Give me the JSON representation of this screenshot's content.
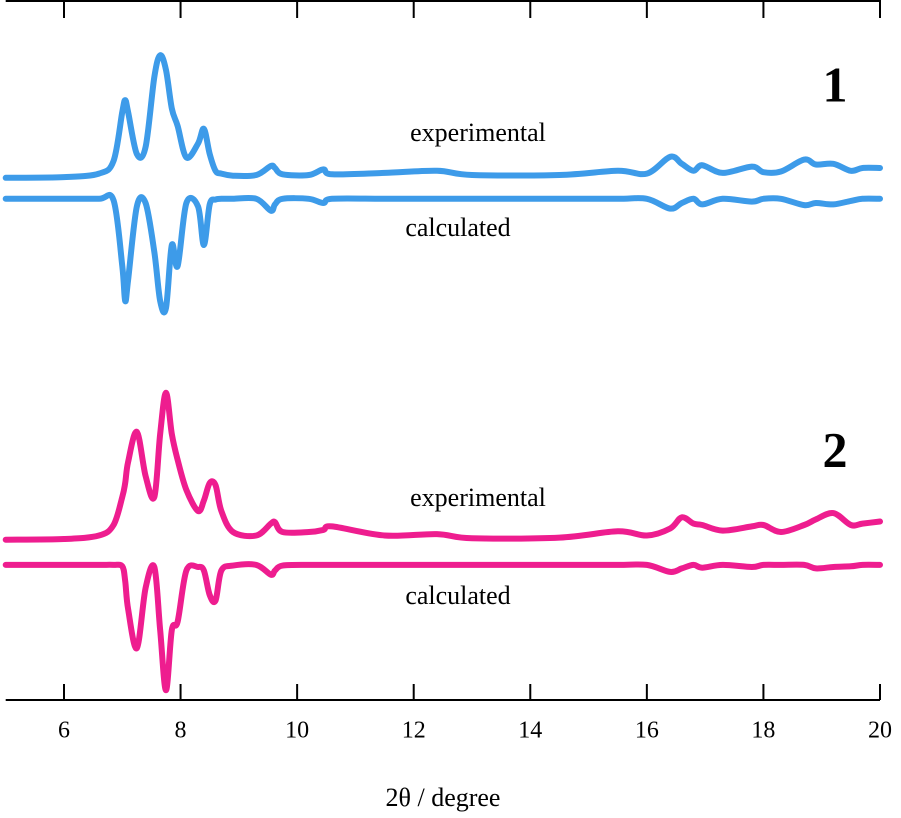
{
  "chart_data": {
    "type": "line",
    "xlabel": "2θ / degree",
    "xlim": [
      5,
      20
    ],
    "xticks": [
      6,
      8,
      10,
      12,
      14,
      16,
      18,
      20
    ],
    "ylim": [
      0,
      100
    ],
    "x": [
      5,
      6,
      6.6,
      6.85,
      7.0,
      7.05,
      7.1,
      7.25,
      7.4,
      7.55,
      7.65,
      7.75,
      7.85,
      7.95,
      8.1,
      8.3,
      8.4,
      8.5,
      8.6,
      8.7,
      8.9,
      9.3,
      9.55,
      9.62,
      9.75,
      10.2,
      10.45,
      10.6,
      11.5,
      12.4,
      13,
      14.5,
      15.5,
      16.0,
      16.4,
      16.6,
      16.8,
      16.95,
      17.3,
      17.8,
      18.0,
      18.3,
      18.7,
      18.9,
      19.2,
      19.5,
      19.7,
      20
    ],
    "series": [
      {
        "color": "#3d9be9",
        "values": [
          74.6,
          74.7,
          75.2,
          77,
          84,
          85.7,
          84,
          78,
          79,
          89,
          92.1,
          90,
          84.5,
          82,
          77.5,
          79.5,
          81.6,
          78,
          75.6,
          75.2,
          74.9,
          75,
          76.3,
          76,
          75.1,
          75,
          75.8,
          75.1,
          75.3,
          75.6,
          75,
          75,
          75.6,
          75.2,
          77.6,
          76.6,
          75.6,
          76.4,
          75.3,
          76.2,
          75.4,
          75.5,
          77.2,
          76.5,
          76.6,
          75.6,
          76,
          76
        ]
      },
      {
        "color": "#3d9be9",
        "values": [
          71.6,
          71.6,
          71.6,
          71.4,
          62,
          57,
          60,
          70.5,
          71,
          64,
          57,
          56,
          65,
          62,
          71,
          70.5,
          65,
          70.8,
          71.5,
          71.6,
          71.6,
          71.6,
          69.9,
          70.8,
          71.6,
          71.6,
          71,
          71.6,
          71.6,
          71.6,
          71.6,
          71.6,
          71.6,
          71.6,
          70.2,
          71,
          71.6,
          70.8,
          71.6,
          71.2,
          71.6,
          71.6,
          70.7,
          71,
          70.8,
          71.3,
          71.6,
          71.6
        ]
      },
      {
        "color": "#ee1d8f",
        "values": [
          22.9,
          23,
          23.5,
          25,
          29,
          31,
          34,
          38.3,
          32,
          29,
          38,
          43.9,
          38,
          34.3,
          30,
          27,
          28.5,
          31,
          30.7,
          27,
          24,
          23.5,
          25.2,
          25.4,
          24,
          24,
          24.3,
          24.8,
          23.5,
          23.7,
          23.1,
          23.2,
          24.1,
          23.5,
          24.5,
          26.1,
          25.2,
          25,
          24.2,
          24.8,
          25,
          24,
          25,
          25.8,
          26.7,
          25,
          25.2,
          25.5
        ]
      },
      {
        "color": "#ee1d8f",
        "values": [
          19.3,
          19.3,
          19.3,
          19.3,
          19.1,
          17,
          13,
          7.4,
          16,
          19,
          10,
          1.4,
          10,
          11.2,
          18.5,
          19,
          18.5,
          15,
          14.2,
          18.5,
          19.2,
          19.3,
          17.9,
          18.5,
          19.2,
          19.3,
          19.3,
          19.3,
          19.3,
          19.3,
          19.3,
          19.3,
          19.3,
          19.3,
          18.3,
          18.8,
          19.3,
          18.9,
          19.3,
          19,
          19.3,
          19.3,
          19.3,
          18.8,
          19,
          19.1,
          19.3,
          19.3
        ]
      }
    ],
    "annotations": [
      "1",
      "experimental",
      "calculated",
      "2",
      "experimental",
      "calculated"
    ]
  }
}
